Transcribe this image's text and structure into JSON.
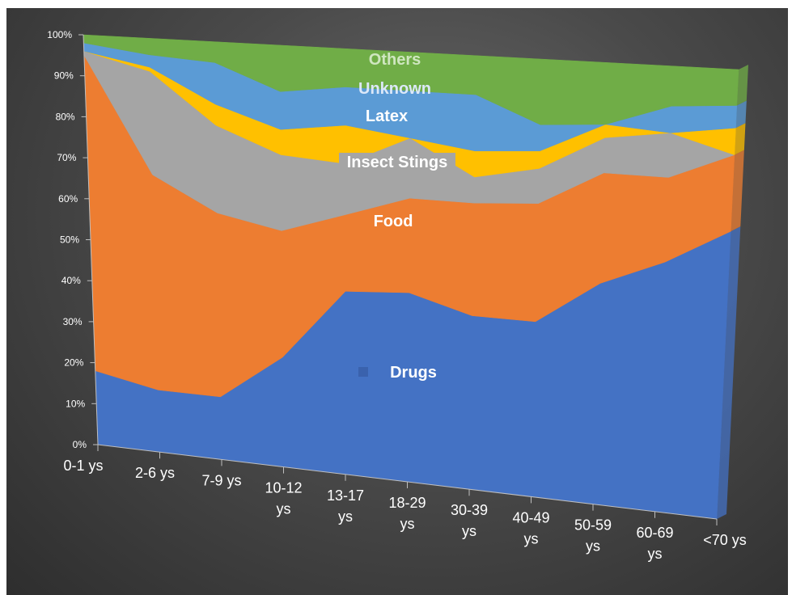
{
  "chart_data": {
    "type": "area",
    "stacked": true,
    "percent": true,
    "three_d": true,
    "categories": [
      [
        "0-1 ys"
      ],
      [
        "2-6 ys"
      ],
      [
        "7-9 ys"
      ],
      [
        "10-12",
        "ys"
      ],
      [
        "13-17",
        "ys"
      ],
      [
        "18-29",
        "ys"
      ],
      [
        "30-39",
        "ys"
      ],
      [
        "40-49",
        "ys"
      ],
      [
        "50-59",
        "ys"
      ],
      [
        "60-69",
        "ys"
      ],
      [
        "<70 ys"
      ]
    ],
    "y_ticks": [
      "0%",
      "10%",
      "20%",
      "30%",
      "40%",
      "50%",
      "60%",
      "70%",
      "80%",
      "90%",
      "100%"
    ],
    "ylim": [
      0,
      100
    ],
    "grid": false,
    "legend": "inline",
    "series": [
      {
        "name": "Drugs",
        "color": "#4472C4",
        "values": [
          18,
          15,
          15,
          26,
          43,
          44,
          40,
          40,
          50,
          56,
          64
        ]
      },
      {
        "name": "Food",
        "color": "#ED7D31",
        "values": [
          77,
          52,
          44,
          30,
          18,
          22,
          26,
          27,
          25,
          19,
          17
        ]
      },
      {
        "name": "Insect Stings",
        "color": "#A5A5A5",
        "values": [
          1,
          25,
          21,
          18,
          12,
          14,
          6,
          8,
          8,
          10,
          0
        ]
      },
      {
        "name": "Latex",
        "color": "#FFC000",
        "values": [
          0,
          1,
          5,
          6,
          9,
          0,
          6,
          4,
          3,
          0,
          6
        ]
      },
      {
        "name": "Unknown",
        "color": "#5B9BD5",
        "values": [
          2,
          3,
          10,
          9,
          9,
          11,
          13,
          6,
          0,
          6,
          5
        ]
      },
      {
        "name": "Others",
        "color": "#70AD47",
        "values": [
          2,
          4,
          5,
          11,
          9,
          9,
          9,
          15,
          14,
          9,
          8
        ]
      }
    ],
    "series_label_colors": {
      "Drugs": "#ffffff",
      "Food": "#ffffff",
      "Insect Stings": "#ffffff",
      "Latex": "#ffffff",
      "Unknown": "#dce8f8",
      "Others": "#cfe6c0"
    }
  }
}
